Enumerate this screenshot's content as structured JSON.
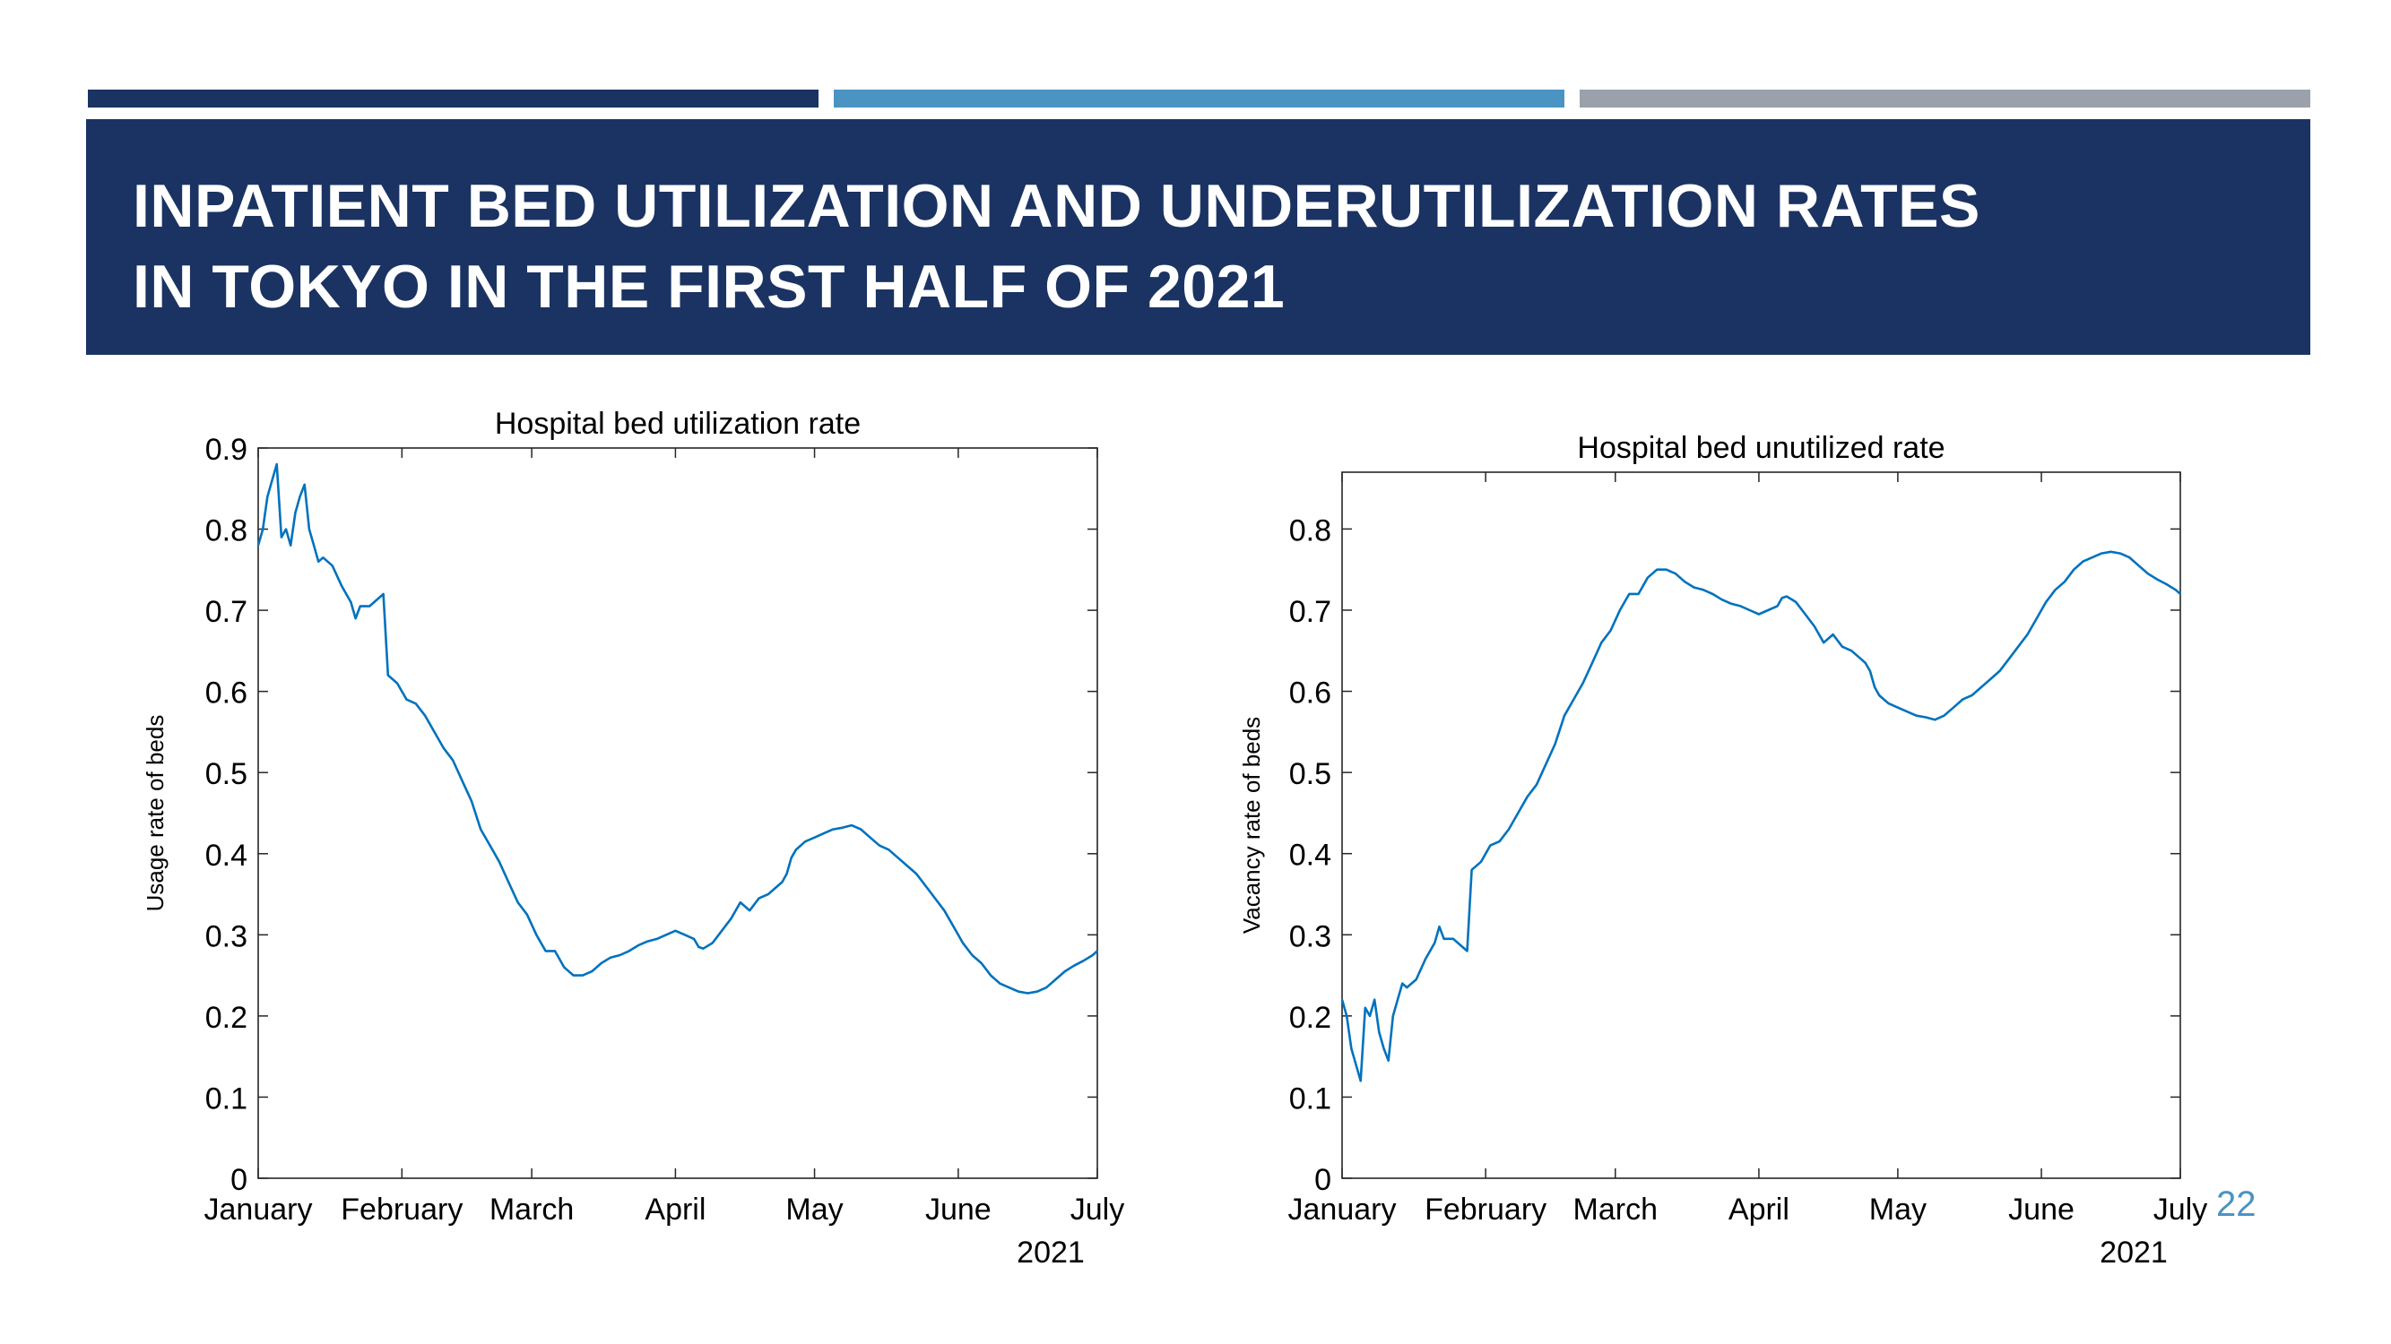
{
  "slide": {
    "title": "INPATIENT BED UTILIZATION AND UNDERUTILIZATION RATES\nIN TOKYO IN THE FIRST HALF OF 2021",
    "page_number": "22"
  },
  "colors": {
    "banner": "#1b3362",
    "bar_dark": "#1b3362",
    "bar_blue": "#4b93c3",
    "bar_gray": "#9aa1aa",
    "line": "#0072bd",
    "page_number": "#4b93c3"
  },
  "chart_data": [
    {
      "type": "line",
      "title": "Hospital bed utilization rate",
      "ylabel": "Usage rate of beds",
      "xlabel": "",
      "year_label": "2021",
      "x_unit": "day of 2021 (Jan 1 = 0)",
      "xlim": [
        0,
        181
      ],
      "ylim": [
        0,
        0.9
      ],
      "x_ticks": [
        0,
        31,
        59,
        90,
        120,
        151,
        181
      ],
      "x_tick_labels": [
        "January",
        "February",
        "March",
        "April",
        "May",
        "June",
        "July"
      ],
      "y_ticks": [
        0,
        0.1,
        0.2,
        0.3,
        0.4,
        0.5,
        0.6,
        0.7,
        0.8,
        0.9
      ],
      "y_tick_labels": [
        "0",
        "0.1",
        "0.2",
        "0.3",
        "0.4",
        "0.5",
        "0.6",
        "0.7",
        "0.8",
        "0.9"
      ],
      "grid": false,
      "series": [
        {
          "x": [
            0,
            1,
            2,
            3,
            4,
            5,
            6,
            7,
            8,
            9,
            10,
            11,
            12,
            13,
            14,
            16,
            18,
            20,
            21,
            22,
            24,
            26,
            27,
            28,
            29,
            30,
            32,
            34,
            36,
            38,
            40,
            42,
            44,
            46,
            48,
            50,
            52,
            54,
            56,
            58,
            60,
            62,
            64,
            66,
            68,
            70,
            72,
            74,
            76,
            78,
            80,
            82,
            84,
            86,
            88,
            90,
            92,
            94,
            95,
            96,
            98,
            100,
            102,
            104,
            106,
            108,
            110,
            112,
            113,
            114,
            115,
            116,
            118,
            120,
            122,
            124,
            126,
            128,
            130,
            132,
            134,
            136,
            138,
            140,
            142,
            144,
            146,
            148,
            150,
            152,
            154,
            156,
            158,
            160,
            162,
            164,
            166,
            168,
            170,
            172,
            174,
            176,
            178,
            180,
            181
          ],
          "y": [
            0.78,
            0.8,
            0.84,
            0.86,
            0.88,
            0.79,
            0.8,
            0.78,
            0.82,
            0.84,
            0.855,
            0.8,
            0.78,
            0.76,
            0.765,
            0.755,
            0.73,
            0.71,
            0.69,
            0.705,
            0.705,
            0.715,
            0.72,
            0.62,
            0.615,
            0.61,
            0.59,
            0.585,
            0.57,
            0.55,
            0.53,
            0.515,
            0.49,
            0.465,
            0.43,
            0.41,
            0.39,
            0.365,
            0.34,
            0.325,
            0.3,
            0.28,
            0.28,
            0.26,
            0.25,
            0.25,
            0.255,
            0.265,
            0.272,
            0.275,
            0.28,
            0.287,
            0.292,
            0.295,
            0.3,
            0.305,
            0.3,
            0.295,
            0.285,
            0.283,
            0.29,
            0.305,
            0.32,
            0.34,
            0.33,
            0.345,
            0.35,
            0.36,
            0.365,
            0.375,
            0.395,
            0.405,
            0.415,
            0.42,
            0.425,
            0.43,
            0.432,
            0.435,
            0.43,
            0.42,
            0.41,
            0.405,
            0.395,
            0.385,
            0.375,
            0.36,
            0.345,
            0.33,
            0.31,
            0.29,
            0.275,
            0.265,
            0.25,
            0.24,
            0.235,
            0.23,
            0.228,
            0.23,
            0.235,
            0.245,
            0.255,
            0.262,
            0.268,
            0.275,
            0.28
          ]
        }
      ]
    },
    {
      "type": "line",
      "title": "Hospital bed unutilized rate",
      "ylabel": "Vacancy rate of beds",
      "xlabel": "",
      "year_label": "2021",
      "x_unit": "day of 2021 (Jan 1 = 0)",
      "xlim": [
        0,
        181
      ],
      "ylim": [
        0,
        0.87
      ],
      "x_ticks": [
        0,
        31,
        59,
        90,
        120,
        151,
        181
      ],
      "x_tick_labels": [
        "January",
        "February",
        "March",
        "April",
        "May",
        "June",
        "July"
      ],
      "y_ticks": [
        0,
        0.1,
        0.2,
        0.3,
        0.4,
        0.5,
        0.6,
        0.7,
        0.8
      ],
      "y_tick_labels": [
        "0",
        "0.1",
        "0.2",
        "0.3",
        "0.4",
        "0.5",
        "0.6",
        "0.7",
        "0.8"
      ],
      "grid": false,
      "series": [
        {
          "x": [
            0,
            1,
            2,
            3,
            4,
            5,
            6,
            7,
            8,
            9,
            10,
            11,
            12,
            13,
            14,
            16,
            18,
            20,
            21,
            22,
            24,
            26,
            27,
            28,
            29,
            30,
            32,
            34,
            36,
            38,
            40,
            42,
            44,
            46,
            48,
            50,
            52,
            54,
            56,
            58,
            60,
            62,
            64,
            66,
            68,
            70,
            72,
            74,
            76,
            78,
            80,
            82,
            84,
            86,
            88,
            90,
            92,
            94,
            95,
            96,
            98,
            100,
            102,
            104,
            106,
            108,
            110,
            112,
            113,
            114,
            115,
            116,
            118,
            120,
            122,
            124,
            126,
            128,
            130,
            132,
            134,
            136,
            138,
            140,
            142,
            144,
            146,
            148,
            150,
            152,
            154,
            156,
            158,
            160,
            162,
            164,
            166,
            168,
            170,
            172,
            174,
            176,
            178,
            180,
            181
          ],
          "y": [
            0.22,
            0.2,
            0.16,
            0.14,
            0.12,
            0.21,
            0.2,
            0.22,
            0.18,
            0.16,
            0.145,
            0.2,
            0.22,
            0.24,
            0.235,
            0.245,
            0.27,
            0.29,
            0.31,
            0.295,
            0.295,
            0.285,
            0.28,
            0.38,
            0.385,
            0.39,
            0.41,
            0.415,
            0.43,
            0.45,
            0.47,
            0.485,
            0.51,
            0.535,
            0.57,
            0.59,
            0.61,
            0.635,
            0.66,
            0.675,
            0.7,
            0.72,
            0.72,
            0.74,
            0.75,
            0.75,
            0.745,
            0.735,
            0.728,
            0.725,
            0.72,
            0.713,
            0.708,
            0.705,
            0.7,
            0.695,
            0.7,
            0.705,
            0.715,
            0.717,
            0.71,
            0.695,
            0.68,
            0.66,
            0.67,
            0.655,
            0.65,
            0.64,
            0.635,
            0.625,
            0.605,
            0.595,
            0.585,
            0.58,
            0.575,
            0.57,
            0.568,
            0.565,
            0.57,
            0.58,
            0.59,
            0.595,
            0.605,
            0.615,
            0.625,
            0.64,
            0.655,
            0.67,
            0.69,
            0.71,
            0.725,
            0.735,
            0.75,
            0.76,
            0.765,
            0.77,
            0.772,
            0.77,
            0.765,
            0.755,
            0.745,
            0.738,
            0.732,
            0.725,
            0.72
          ]
        }
      ]
    }
  ]
}
